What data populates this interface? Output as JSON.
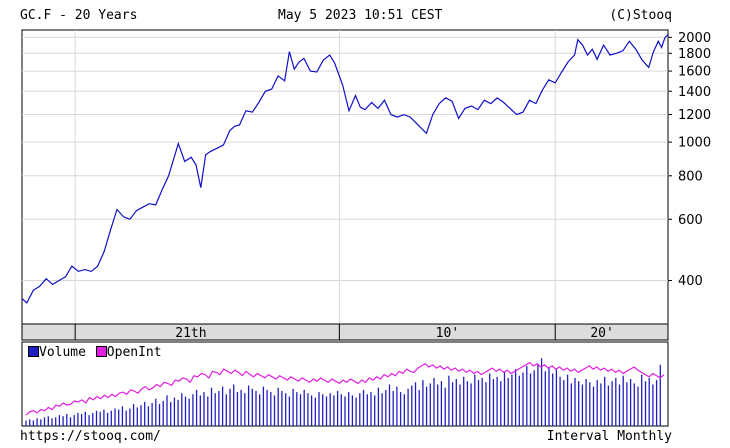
{
  "header": {
    "title": "GC.F - 20 Years",
    "datetime": "May 5 2023 10:51 CEST",
    "copyright": "(C)Stooq"
  },
  "footer": {
    "url": "https://stooq.com/",
    "interval": "Interval Monthly"
  },
  "legend": {
    "volume_label": "Volume",
    "openint_label": "OpenInt"
  },
  "colors": {
    "price_line": "#1010c8",
    "volume_bars": "#2020c0",
    "openint_line": "#e020e0",
    "grid": "#d8d8d8",
    "axis_band": "#dcdcdc"
  },
  "chart_data": [
    {
      "type": "line",
      "title": "GC.F - 20 Years",
      "y_scale": "log",
      "ylim": [
        300,
        2100
      ],
      "y_ticks": [
        400,
        600,
        800,
        1000,
        1200,
        1400,
        1600,
        1800,
        2000
      ],
      "x_labels": [
        "21th",
        "10'",
        "20'"
      ],
      "x_start": 2003.35,
      "x_end": 2023.4,
      "series": [
        {
          "values": [
            [
              2003.35,
              355
            ],
            [
              2003.5,
              345
            ],
            [
              2003.7,
              375
            ],
            [
              2003.9,
              385
            ],
            [
              2004.1,
              405
            ],
            [
              2004.3,
              390
            ],
            [
              2004.5,
              400
            ],
            [
              2004.7,
              410
            ],
            [
              2004.9,
              440
            ],
            [
              2005.1,
              425
            ],
            [
              2005.3,
              430
            ],
            [
              2005.5,
              425
            ],
            [
              2005.7,
              440
            ],
            [
              2005.9,
              485
            ],
            [
              2006.1,
              560
            ],
            [
              2006.3,
              640
            ],
            [
              2006.5,
              610
            ],
            [
              2006.7,
              600
            ],
            [
              2006.9,
              635
            ],
            [
              2007.1,
              650
            ],
            [
              2007.3,
              665
            ],
            [
              2007.5,
              660
            ],
            [
              2007.7,
              730
            ],
            [
              2007.9,
              800
            ],
            [
              2008.1,
              920
            ],
            [
              2008.2,
              990
            ],
            [
              2008.4,
              880
            ],
            [
              2008.6,
              905
            ],
            [
              2008.75,
              860
            ],
            [
              2008.9,
              740
            ],
            [
              2009.05,
              920
            ],
            [
              2009.2,
              940
            ],
            [
              2009.4,
              960
            ],
            [
              2009.6,
              980
            ],
            [
              2009.8,
              1080
            ],
            [
              2009.95,
              1110
            ],
            [
              2010.1,
              1120
            ],
            [
              2010.3,
              1230
            ],
            [
              2010.5,
              1220
            ],
            [
              2010.7,
              1300
            ],
            [
              2010.9,
              1400
            ],
            [
              2011.1,
              1420
            ],
            [
              2011.3,
              1550
            ],
            [
              2011.5,
              1500
            ],
            [
              2011.65,
              1820
            ],
            [
              2011.8,
              1620
            ],
            [
              2011.95,
              1700
            ],
            [
              2012.1,
              1740
            ],
            [
              2012.3,
              1600
            ],
            [
              2012.5,
              1590
            ],
            [
              2012.7,
              1720
            ],
            [
              2012.9,
              1780
            ],
            [
              2013.05,
              1690
            ],
            [
              2013.3,
              1460
            ],
            [
              2013.5,
              1230
            ],
            [
              2013.7,
              1360
            ],
            [
              2013.85,
              1260
            ],
            [
              2014.0,
              1240
            ],
            [
              2014.2,
              1300
            ],
            [
              2014.4,
              1250
            ],
            [
              2014.6,
              1320
            ],
            [
              2014.8,
              1200
            ],
            [
              2015.0,
              1180
            ],
            [
              2015.2,
              1200
            ],
            [
              2015.4,
              1180
            ],
            [
              2015.6,
              1130
            ],
            [
              2015.9,
              1060
            ],
            [
              2016.1,
              1200
            ],
            [
              2016.3,
              1290
            ],
            [
              2016.5,
              1340
            ],
            [
              2016.7,
              1310
            ],
            [
              2016.9,
              1170
            ],
            [
              2017.1,
              1250
            ],
            [
              2017.3,
              1270
            ],
            [
              2017.5,
              1240
            ],
            [
              2017.7,
              1320
            ],
            [
              2017.9,
              1290
            ],
            [
              2018.1,
              1340
            ],
            [
              2018.3,
              1300
            ],
            [
              2018.5,
              1250
            ],
            [
              2018.7,
              1200
            ],
            [
              2018.9,
              1220
            ],
            [
              2019.1,
              1320
            ],
            [
              2019.3,
              1290
            ],
            [
              2019.5,
              1410
            ],
            [
              2019.7,
              1510
            ],
            [
              2019.9,
              1480
            ],
            [
              2020.1,
              1590
            ],
            [
              2020.3,
              1700
            ],
            [
              2020.5,
              1780
            ],
            [
              2020.6,
              1970
            ],
            [
              2020.75,
              1900
            ],
            [
              2020.9,
              1780
            ],
            [
              2021.05,
              1850
            ],
            [
              2021.2,
              1730
            ],
            [
              2021.4,
              1900
            ],
            [
              2021.6,
              1780
            ],
            [
              2021.8,
              1800
            ],
            [
              2022.0,
              1830
            ],
            [
              2022.2,
              1950
            ],
            [
              2022.4,
              1850
            ],
            [
              2022.6,
              1720
            ],
            [
              2022.8,
              1640
            ],
            [
              2022.95,
              1820
            ],
            [
              2023.1,
              1950
            ],
            [
              2023.2,
              1870
            ],
            [
              2023.3,
              1990
            ],
            [
              2023.4,
              2040
            ]
          ]
        }
      ]
    },
    {
      "type": "bar",
      "legend": [
        "Volume",
        "OpenInt"
      ],
      "x_start": 2003.35,
      "x_end": 2023.4,
      "series": [
        {
          "name": "Volume",
          "values": [
            5,
            6,
            5,
            7,
            6,
            8,
            9,
            7,
            8,
            10,
            9,
            11,
            8,
            10,
            12,
            11,
            13,
            10,
            12,
            14,
            13,
            15,
            12,
            14,
            16,
            15,
            18,
            14,
            16,
            20,
            17,
            19,
            22,
            18,
            21,
            25,
            20,
            23,
            28,
            22,
            26,
            24,
            30,
            27,
            25,
            29,
            33,
            28,
            31,
            27,
            35,
            30,
            32,
            36,
            29,
            34,
            38,
            31,
            33,
            30,
            37,
            34,
            32,
            29,
            36,
            33,
            31,
            28,
            35,
            32,
            30,
            27,
            34,
            31,
            29,
            33,
            30,
            28,
            26,
            31,
            29,
            27,
            30,
            28,
            32,
            29,
            27,
            31,
            28,
            26,
            30,
            33,
            29,
            31,
            28,
            35,
            30,
            33,
            38,
            32,
            36,
            31,
            29,
            34,
            37,
            40,
            33,
            42,
            36,
            39,
            44,
            38,
            41,
            35,
            46,
            40,
            43,
            38,
            45,
            41,
            39,
            47,
            42,
            44,
            40,
            48,
            43,
            45,
            41,
            50,
            44,
            47,
            52,
            46,
            49,
            55,
            48,
            51,
            57,
            62,
            50,
            54,
            48,
            52,
            45,
            42,
            47,
            39,
            44,
            41,
            38,
            43,
            40,
            36,
            42,
            39,
            45,
            37,
            41,
            44,
            38,
            46,
            40,
            43,
            39,
            36,
            47,
            41,
            44,
            38,
            42,
            56
          ]
        },
        {
          "name": "OpenInt",
          "values": [
            10,
            13,
            14,
            12,
            15,
            14,
            17,
            15,
            19,
            18,
            21,
            19,
            20,
            23,
            22,
            24,
            21,
            26,
            24,
            27,
            25,
            28,
            26,
            29,
            27,
            30,
            31,
            29,
            33,
            32,
            30,
            34,
            36,
            33,
            35,
            38,
            36,
            40,
            39,
            37,
            42,
            41,
            44,
            43,
            40,
            46,
            45,
            48,
            47,
            44,
            50,
            49,
            47,
            52,
            50,
            48,
            51,
            49,
            46,
            50,
            47,
            45,
            48,
            46,
            44,
            47,
            45,
            43,
            46,
            44,
            42,
            45,
            43,
            41,
            44,
            42,
            40,
            43,
            41,
            44,
            42,
            40,
            43,
            41,
            39,
            42,
            40,
            43,
            41,
            39,
            42,
            40,
            44,
            42,
            45,
            43,
            47,
            45,
            48,
            46,
            50,
            48,
            52,
            50,
            49,
            53,
            55,
            57,
            54,
            56,
            53,
            55,
            52,
            54,
            51,
            53,
            50,
            52,
            49,
            51,
            48,
            50,
            47,
            49,
            51,
            53,
            50,
            52,
            49,
            51,
            48,
            50,
            52,
            54,
            56,
            58,
            55,
            57,
            54,
            56,
            53,
            55,
            52,
            54,
            51,
            53,
            50,
            52,
            49,
            51,
            53,
            55,
            52,
            54,
            51,
            53,
            50,
            52,
            49,
            51,
            48,
            50,
            52,
            54,
            51,
            49,
            47,
            45,
            48,
            46,
            44,
            47
          ]
        }
      ]
    }
  ]
}
